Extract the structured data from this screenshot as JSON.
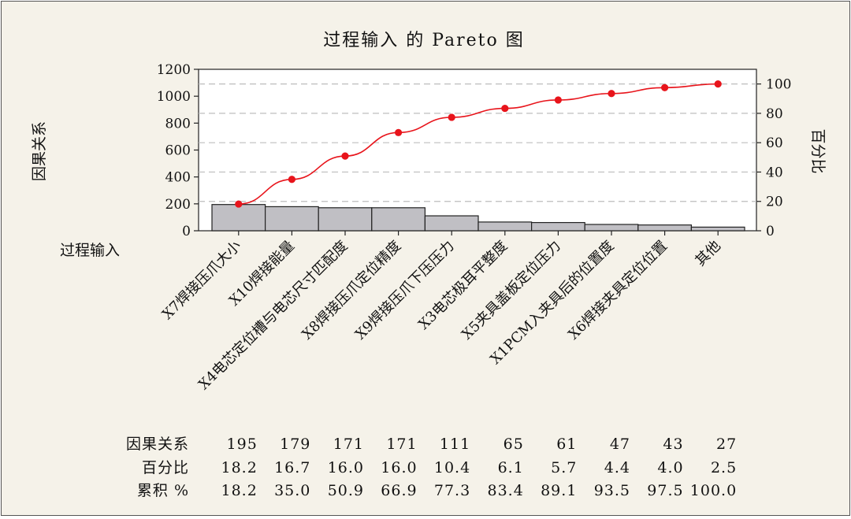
{
  "chart_data": {
    "type": "bar",
    "title": "过程输入 的 Pareto 图",
    "xlabel": "过程输入",
    "ylabel": "因果关系",
    "y2label": "百分比",
    "ylim": [
      0,
      1200
    ],
    "y2lim": [
      0,
      110
    ],
    "yticks": [
      0,
      200,
      400,
      600,
      800,
      1000,
      1200
    ],
    "y2ticks": [
      0,
      20,
      40,
      60,
      80,
      100
    ],
    "grid": true,
    "categories": [
      "X7焊接压爪大小",
      "X10焊接能量",
      "X4电芯定位槽与电芯尺寸匹配度",
      "X8焊接压爪定位精度",
      "X9焊接压爪下压压力",
      "X3电芯极耳平整度",
      "X5夹具盖板定位压力",
      "X1PCM入夹具后的位置度",
      "X6焊接夹具定位位置",
      "其他"
    ],
    "series": [
      {
        "name": "因果关系",
        "type": "bar",
        "values": [
          195,
          179,
          171,
          171,
          111,
          65,
          61,
          47,
          43,
          27
        ]
      },
      {
        "name": "累积 %",
        "type": "line",
        "values": [
          18.2,
          35.0,
          50.9,
          66.9,
          77.3,
          83.4,
          89.1,
          93.5,
          97.5,
          100.0
        ]
      }
    ],
    "table": {
      "rows": [
        {
          "label": "因果关系",
          "values": [
            "195",
            "179",
            "171",
            "171",
            "111",
            "65",
            "61",
            "47",
            "43",
            "27"
          ]
        },
        {
          "label": "百分比",
          "values": [
            "18.2",
            "16.7",
            "16.0",
            "16.0",
            "10.4",
            "6.1",
            "5.7",
            "4.4",
            "4.0",
            "2.5"
          ]
        },
        {
          "label": "累积 %",
          "values": [
            "18.2",
            "35.0",
            "50.9",
            "66.9",
            "77.3",
            "83.4",
            "89.1",
            "93.5",
            "97.5",
            "100.0"
          ]
        }
      ]
    },
    "colors": {
      "bar_fill": "#c0bfc4",
      "bar_stroke": "#222222",
      "line": "#e8141b",
      "grid": "#bdbdbd",
      "background": "#f5f2e9",
      "plot_background": "#ffffff"
    }
  }
}
